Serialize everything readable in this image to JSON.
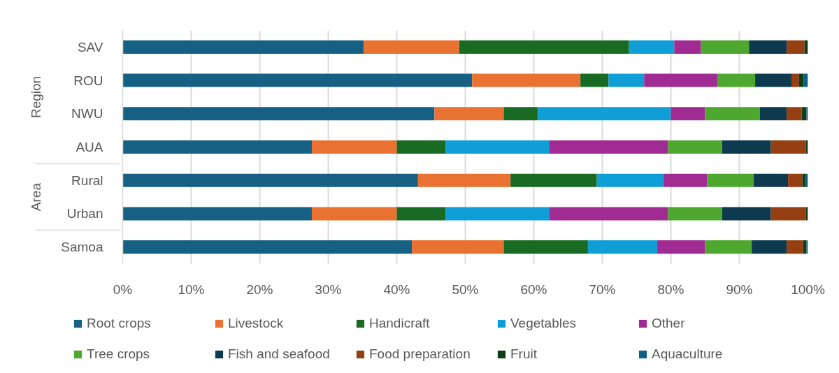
{
  "chart_data": {
    "type": "bar",
    "orientation": "horizontal",
    "stacked": true,
    "categories": [
      "SAV",
      "ROU",
      "NWU",
      "AUA",
      "Rural",
      "Urban",
      "Samoa"
    ],
    "series": [
      {
        "name": "Root crops",
        "color": "#166083",
        "values": [
          35.2,
          51.0,
          45.5,
          27.6,
          43.1,
          27.6,
          42.2
        ]
      },
      {
        "name": "Livestock",
        "color": "#e97132",
        "values": [
          13.9,
          15.8,
          10.1,
          12.4,
          13.5,
          12.4,
          13.4
        ]
      },
      {
        "name": "Handicraft",
        "color": "#196b24",
        "values": [
          24.8,
          4.1,
          5.0,
          7.1,
          12.6,
          7.1,
          12.3
        ]
      },
      {
        "name": "Vegetables",
        "color": "#0f9ed5",
        "values": [
          6.6,
          5.2,
          19.4,
          15.2,
          9.7,
          15.2,
          10.1
        ]
      },
      {
        "name": "Other",
        "color": "#a02b93",
        "values": [
          3.9,
          10.7,
          5.0,
          17.3,
          6.4,
          17.3,
          7.0
        ]
      },
      {
        "name": "Tree crops",
        "color": "#4ea72e",
        "values": [
          7.0,
          5.5,
          8.0,
          7.9,
          6.8,
          7.9,
          6.8
        ]
      },
      {
        "name": "Fish and seafood",
        "color": "#0e3a50",
        "values": [
          5.5,
          5.3,
          3.9,
          7.1,
          5.0,
          7.1,
          5.1
        ]
      },
      {
        "name": "Food preparation",
        "color": "#963f12",
        "values": [
          2.6,
          1.1,
          2.2,
          5.1,
          2.1,
          5.1,
          2.4
        ]
      },
      {
        "name": "Fruit",
        "color": "#0f3d15",
        "values": [
          0.5,
          0.7,
          0.7,
          0.3,
          0.5,
          0.3,
          0.5
        ]
      },
      {
        "name": "Aquaculture",
        "color": "#0e5f84",
        "values": [
          0.0,
          0.6,
          0.2,
          0.0,
          0.3,
          0.0,
          0.2
        ]
      }
    ],
    "xlim": [
      0,
      100
    ],
    "xticks": [
      {
        "value": 0,
        "label": "0%"
      },
      {
        "value": 10,
        "label": "10%"
      },
      {
        "value": 20,
        "label": "20%"
      },
      {
        "value": 30,
        "label": "30%"
      },
      {
        "value": 40,
        "label": "40%"
      },
      {
        "value": 50,
        "label": "50%"
      },
      {
        "value": 60,
        "label": "60%"
      },
      {
        "value": 70,
        "label": "70%"
      },
      {
        "value": 80,
        "label": "80%"
      },
      {
        "value": 90,
        "label": "90%"
      },
      {
        "value": 100,
        "label": "100%"
      }
    ],
    "grid": "x",
    "legend": "bottom",
    "annotations": [
      "Region",
      "Area"
    ]
  }
}
